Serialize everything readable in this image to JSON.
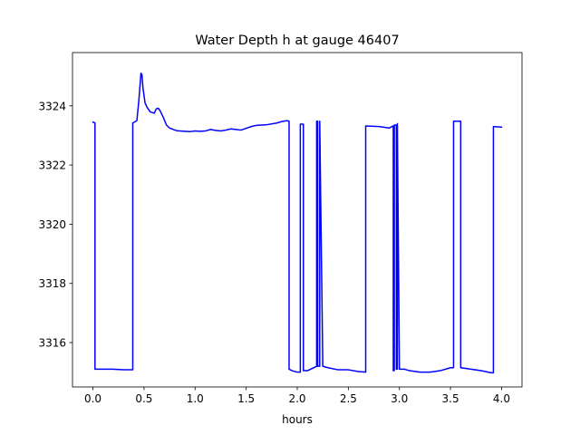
{
  "chart_data": {
    "type": "line",
    "title": "Water Depth h at gauge 46407",
    "xlabel": "hours",
    "ylabel": "",
    "xlim": [
      -0.2,
      4.2
    ],
    "ylim": [
      3314.5,
      3325.8
    ],
    "x_ticks": [
      0.0,
      0.5,
      1.0,
      1.5,
      2.0,
      2.5,
      3.0,
      3.5,
      4.0
    ],
    "x_tick_labels": [
      "0.0",
      "0.5",
      "1.0",
      "1.5",
      "2.0",
      "2.5",
      "3.0",
      "3.5",
      "4.0"
    ],
    "y_ticks": [
      3316,
      3318,
      3320,
      3322,
      3324
    ],
    "y_tick_labels": [
      "3316",
      "3318",
      "3320",
      "3322",
      "3324"
    ],
    "grid": false,
    "legend": "none",
    "series": [
      {
        "color": "#0000ff",
        "x": [
          0.0,
          0.02,
          0.02,
          0.1,
          0.2,
          0.3,
          0.39,
          0.39,
          0.43,
          0.45,
          0.47,
          0.48,
          0.49,
          0.51,
          0.53,
          0.56,
          0.6,
          0.62,
          0.64,
          0.66,
          0.69,
          0.72,
          0.75,
          0.82,
          0.9,
          0.95,
          1.0,
          1.05,
          1.1,
          1.15,
          1.2,
          1.25,
          1.3,
          1.35,
          1.4,
          1.45,
          1.5,
          1.55,
          1.6,
          1.7,
          1.8,
          1.85,
          1.9,
          1.92,
          1.92,
          1.95,
          2.0,
          2.03,
          2.03,
          2.06,
          2.06,
          2.1,
          2.13,
          2.19,
          2.19,
          2.2,
          2.2,
          2.22,
          2.22,
          2.25,
          2.3,
          2.4,
          2.5,
          2.6,
          2.67,
          2.67,
          2.8,
          2.9,
          2.94,
          2.94,
          2.95,
          2.95,
          2.97,
          2.97,
          2.98,
          2.98,
          3.0,
          3.05,
          3.1,
          3.2,
          3.3,
          3.4,
          3.5,
          3.53,
          3.53,
          3.58,
          3.6,
          3.6,
          3.7,
          3.8,
          3.9,
          3.92,
          3.92,
          4.0
        ],
        "y": [
          3323.45,
          3323.42,
          3315.1,
          3315.1,
          3315.1,
          3315.08,
          3315.08,
          3323.42,
          3323.5,
          3324.2,
          3325.1,
          3325.05,
          3324.6,
          3324.1,
          3323.95,
          3323.8,
          3323.75,
          3323.9,
          3323.92,
          3323.82,
          3323.6,
          3323.35,
          3323.25,
          3323.16,
          3323.14,
          3323.13,
          3323.15,
          3323.14,
          3323.15,
          3323.2,
          3323.17,
          3323.15,
          3323.18,
          3323.22,
          3323.2,
          3323.18,
          3323.24,
          3323.3,
          3323.34,
          3323.36,
          3323.42,
          3323.47,
          3323.5,
          3323.48,
          3315.1,
          3315.05,
          3315.0,
          3315.0,
          3323.38,
          3323.38,
          3315.05,
          3315.05,
          3315.1,
          3315.2,
          3323.48,
          3323.48,
          3315.2,
          3315.2,
          3323.48,
          3315.2,
          3315.15,
          3315.08,
          3315.08,
          3315.02,
          3315.0,
          3323.32,
          3323.3,
          3323.25,
          3323.32,
          3315.05,
          3315.05,
          3323.35,
          3323.35,
          3315.1,
          3315.1,
          3323.4,
          3315.1,
          3315.1,
          3315.05,
          3315.0,
          3315.0,
          3315.05,
          3315.15,
          3315.15,
          3323.48,
          3323.48,
          3323.48,
          3315.15,
          3315.1,
          3315.05,
          3314.98,
          3314.98,
          3323.3,
          3323.28
        ]
      }
    ]
  }
}
